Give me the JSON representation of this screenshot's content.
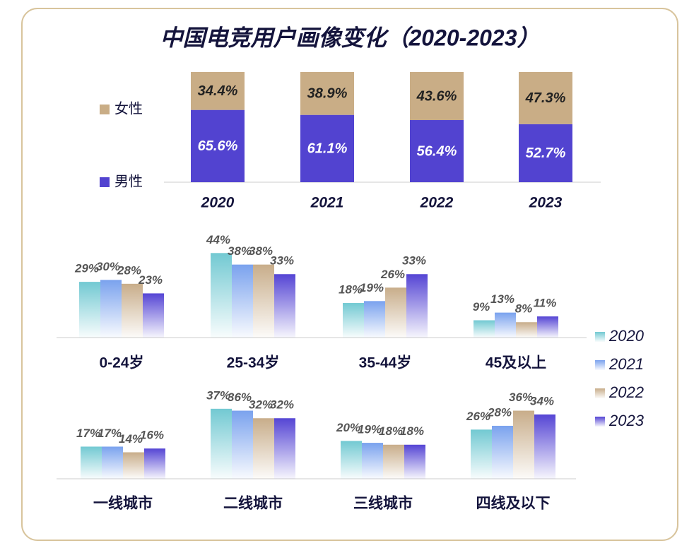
{
  "chart_data": [
    {
      "type": "stacked_bar",
      "title": "中国电竞用户画像变化（2020-2023）",
      "categories": [
        "2020",
        "2021",
        "2022",
        "2023"
      ],
      "series": [
        {
          "name": "男性",
          "color": "#5243d0",
          "values": [
            65.6,
            61.1,
            56.4,
            52.7
          ],
          "value_labels": [
            "65.6%",
            "61.1%",
            "56.4%",
            "52.7%"
          ]
        },
        {
          "name": "女性",
          "color": "#c9ad86",
          "values": [
            34.4,
            38.9,
            43.6,
            47.3
          ],
          "value_labels": [
            "34.4%",
            "38.9%",
            "43.6%",
            "47.3%"
          ]
        }
      ]
    },
    {
      "type": "bar",
      "categories": [
        "0-24岁",
        "25-34岁",
        "35-44岁",
        "45及以上"
      ],
      "series": [
        {
          "name": "2020",
          "color": "#72c9d2",
          "values": [
            29,
            44,
            18,
            9
          ],
          "value_labels": [
            "29%",
            "44%",
            "18%",
            "9%"
          ]
        },
        {
          "name": "2021",
          "color": "#7aa2ee",
          "values": [
            30,
            38,
            19,
            13
          ],
          "value_labels": [
            "30%",
            "38%",
            "19%",
            "13%"
          ]
        },
        {
          "name": "2022",
          "color": "#c8ad8a",
          "values": [
            28,
            38,
            26,
            8
          ],
          "value_labels": [
            "28%",
            "38%",
            "26%",
            "8%"
          ]
        },
        {
          "name": "2023",
          "color": "#5545d4",
          "values": [
            23,
            33,
            33,
            11
          ],
          "value_labels": [
            "23%",
            "33%",
            "33%",
            "11%"
          ]
        }
      ]
    },
    {
      "type": "bar",
      "categories": [
        "一线城市",
        "二线城市",
        "三线城市",
        "四线及以下"
      ],
      "series": [
        {
          "color": "#72c9d2",
          "values": [
            17,
            37,
            20,
            26
          ],
          "value_labels": [
            "17%",
            "37%",
            "20%",
            "26%"
          ]
        },
        {
          "color": "#7aa2ee",
          "values": [
            17,
            36,
            19,
            28
          ],
          "value_labels": [
            "17%",
            "36%",
            "19%",
            "28%"
          ]
        },
        {
          "color": "#c8ad8a",
          "values": [
            14,
            32,
            18,
            36
          ],
          "value_labels": [
            "14%",
            "32%",
            "18%",
            "36%"
          ]
        },
        {
          "color": "#5545d4",
          "values": [
            16,
            32,
            18,
            34
          ],
          "value_labels": [
            "16%",
            "32%",
            "18%",
            "34%"
          ]
        }
      ]
    }
  ]
}
